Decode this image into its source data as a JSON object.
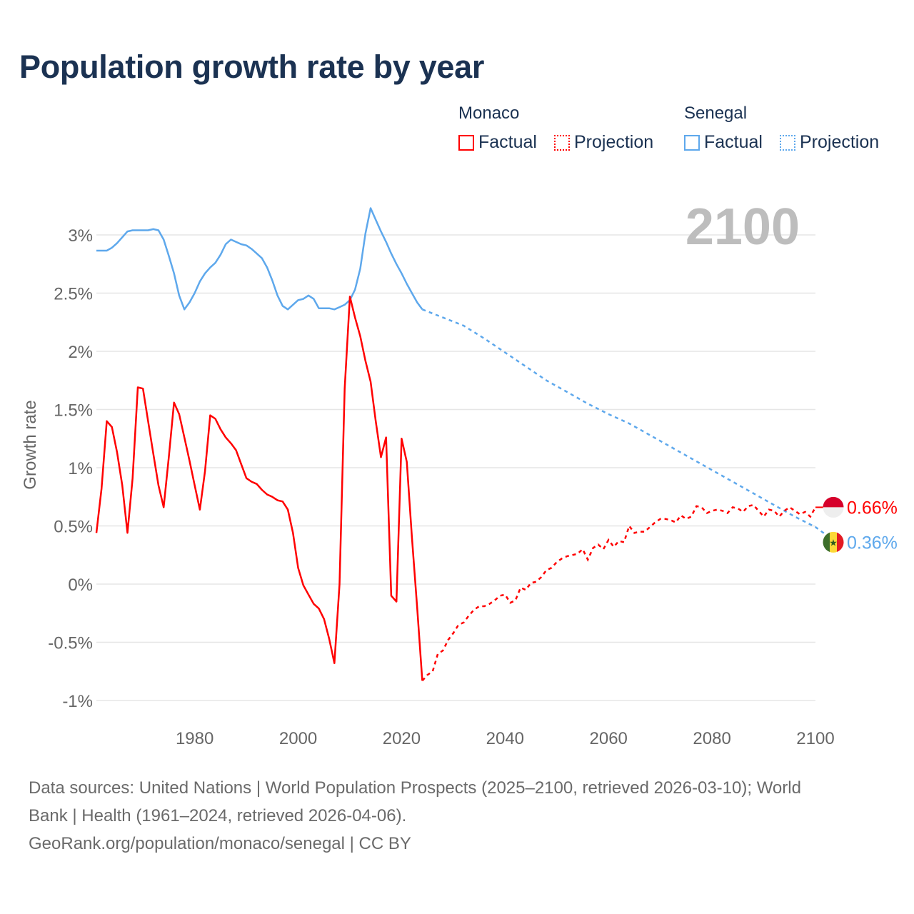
{
  "title": "Population growth rate by year",
  "legend": {
    "groups": [
      {
        "name": "Monaco",
        "color": "#ff0000",
        "factual": "Factual",
        "projection": "Projection"
      },
      {
        "name": "Senegal",
        "color": "#5ea8ec",
        "factual": "Factual",
        "projection": "Projection"
      }
    ]
  },
  "chart_data": {
    "type": "line",
    "title": "Population growth rate by year",
    "ylabel": "Growth rate",
    "xlabel": "",
    "year_watermark": "2100",
    "xlim": [
      1961,
      2100
    ],
    "ylim": [
      -1.1,
      3.4
    ],
    "x_ticks": [
      {
        "v": 1980,
        "label": "1980"
      },
      {
        "v": 2000,
        "label": "2000"
      },
      {
        "v": 2020,
        "label": "2020"
      },
      {
        "v": 2040,
        "label": "2040"
      },
      {
        "v": 2060,
        "label": "2060"
      },
      {
        "v": 2080,
        "label": "2080"
      },
      {
        "v": 2100,
        "label": "2100"
      }
    ],
    "y_ticks": [
      {
        "v": 3,
        "label": "3%"
      },
      {
        "v": 2.5,
        "label": "2.5%"
      },
      {
        "v": 2,
        "label": "2%"
      },
      {
        "v": 1.5,
        "label": "1.5%"
      },
      {
        "v": 1,
        "label": "1%"
      },
      {
        "v": 0.5,
        "label": "0.5%"
      },
      {
        "v": 0,
        "label": "0%"
      },
      {
        "v": -0.5,
        "label": "-0.5%"
      },
      {
        "v": -1,
        "label": "-1%"
      }
    ],
    "grid": true,
    "series": [
      {
        "name": "Monaco",
        "color": "#ff0000",
        "end_label": "0.66%",
        "factual": {
          "start": 1961,
          "values": [
            0.44,
            0.82,
            1.4,
            1.35,
            1.13,
            0.85,
            0.44,
            0.91,
            1.69,
            1.68,
            1.4,
            1.12,
            0.85,
            0.66,
            1.09,
            1.56,
            1.46,
            1.26,
            1.06,
            0.85,
            0.64,
            0.97,
            1.45,
            1.42,
            1.33,
            1.26,
            1.21,
            1.15,
            1.03,
            0.91,
            0.88,
            0.86,
            0.81,
            0.77,
            0.75,
            0.72,
            0.71,
            0.64,
            0.44,
            0.14,
            -0.01,
            -0.09,
            -0.17,
            -0.21,
            -0.3,
            -0.47,
            -0.68,
            0.0,
            1.68,
            2.47,
            2.29,
            2.13,
            1.92,
            1.74,
            1.4,
            1.09,
            1.26,
            -0.1,
            -0.15,
            1.25,
            1.05,
            0.4,
            -0.2,
            -0.83
          ]
        },
        "projection": {
          "start": 2024,
          "values": [
            -0.83,
            -0.78,
            -0.75,
            -0.6,
            -0.57,
            -0.48,
            -0.42,
            -0.35,
            -0.33,
            -0.27,
            -0.22,
            -0.19,
            -0.19,
            -0.17,
            -0.14,
            -0.1,
            -0.09,
            -0.16,
            -0.14,
            -0.03,
            -0.05,
            0.01,
            0.02,
            0.06,
            0.12,
            0.14,
            0.19,
            0.22,
            0.24,
            0.25,
            0.26,
            0.3,
            0.21,
            0.31,
            0.34,
            0.3,
            0.38,
            0.32,
            0.37,
            0.36,
            0.5,
            0.44,
            0.45,
            0.45,
            0.49,
            0.53,
            0.56,
            0.56,
            0.55,
            0.53,
            0.59,
            0.56,
            0.58,
            0.67,
            0.66,
            0.61,
            0.63,
            0.64,
            0.63,
            0.61,
            0.66,
            0.65,
            0.62,
            0.67,
            0.68,
            0.63,
            0.58,
            0.64,
            0.63,
            0.58,
            0.63,
            0.66,
            0.63,
            0.6,
            0.62,
            0.58,
            0.66
          ]
        }
      },
      {
        "name": "Senegal",
        "color": "#5ea8ec",
        "end_label": "0.36%",
        "factual": {
          "start": 1961,
          "values": [
            2.865,
            2.865,
            2.865,
            2.89,
            2.93,
            2.98,
            3.03,
            3.04,
            3.04,
            3.04,
            3.04,
            3.05,
            3.04,
            2.96,
            2.82,
            2.67,
            2.48,
            2.36,
            2.42,
            2.5,
            2.6,
            2.67,
            2.72,
            2.76,
            2.83,
            2.92,
            2.96,
            2.94,
            2.92,
            2.91,
            2.88,
            2.84,
            2.8,
            2.72,
            2.61,
            2.48,
            2.39,
            2.36,
            2.4,
            2.44,
            2.45,
            2.48,
            2.45,
            2.37,
            2.37,
            2.37,
            2.36,
            2.38,
            2.4,
            2.44,
            2.53,
            2.71,
            3.01,
            3.23,
            3.13,
            3.03,
            2.94,
            2.84,
            2.75,
            2.67,
            2.58,
            2.5,
            2.42,
            2.36
          ]
        },
        "projection": {
          "start": 2024,
          "step": 4,
          "values": [
            2.36,
            2.29,
            2.22,
            2.11,
            1.99,
            1.87,
            1.75,
            1.65,
            1.55,
            1.46,
            1.38,
            1.28,
            1.18,
            1.08,
            0.98,
            0.88,
            0.78,
            0.68,
            0.58,
            0.49,
            0.36
          ]
        }
      }
    ]
  },
  "footer": {
    "line1": "Data sources: United Nations | World Population Prospects (2025–2100, retrieved 2026-03-10); World",
    "line2": "Bank | Health (1961–2024, retrieved 2026-04-06).",
    "line3": "GeoRank.org/population/monaco/senegal | CC BY"
  }
}
